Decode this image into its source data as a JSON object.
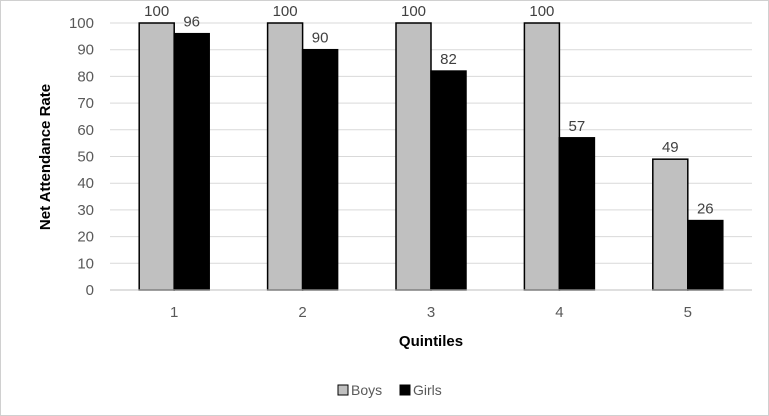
{
  "chart_data": {
    "type": "bar",
    "categories": [
      "1",
      "2",
      "3",
      "4",
      "5"
    ],
    "series": [
      {
        "name": "Boys",
        "values": [
          100,
          100,
          100,
          100,
          49
        ],
        "color": "#c0c0c0"
      },
      {
        "name": "Girls",
        "values": [
          96,
          90,
          82,
          57,
          26
        ],
        "color": "#000000"
      }
    ],
    "data_labels": [
      [
        "100",
        "100",
        "100",
        "100",
        "49"
      ],
      [
        "96",
        "90",
        "82",
        "57",
        "26"
      ]
    ],
    "title": "",
    "xlabel": "Quintiles",
    "ylabel": "Net Attendance Rate",
    "ylim": [
      0,
      100
    ],
    "yticks": [
      0,
      10,
      20,
      30,
      40,
      50,
      60,
      70,
      80,
      90,
      100
    ],
    "grid": true,
    "legend": "bottom-center"
  }
}
